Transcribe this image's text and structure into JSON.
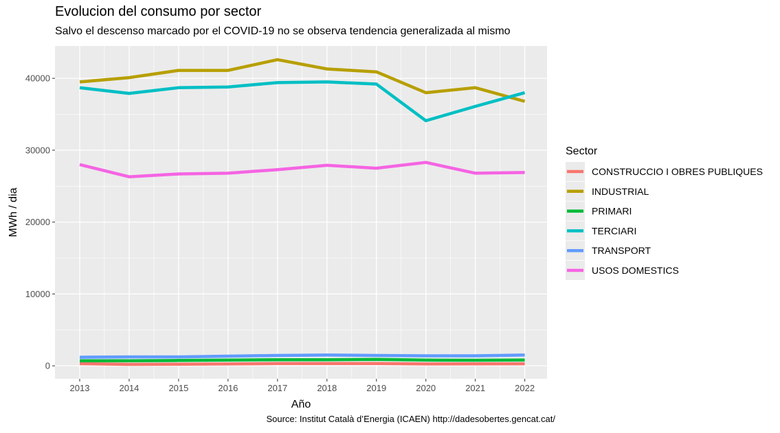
{
  "title": "Evolucion del consumo por sector",
  "subtitle": "Salvo el descenso marcado por el COVID-19 no se observa tendencia generalizada al mismo",
  "caption": "Source: Institut Català d’Energia (ICAEN) http://dadesobertes.gencat.cat/",
  "chart_data": {
    "type": "line",
    "xlabel": "Año",
    "ylabel": "MWh / dia",
    "x": [
      2013,
      2014,
      2015,
      2016,
      2017,
      2018,
      2019,
      2020,
      2021,
      2022
    ],
    "xlim": [
      2012.5,
      2022.45
    ],
    "ylim": [
      -1800,
      44500
    ],
    "yticks": [
      0,
      10000,
      20000,
      30000,
      40000
    ],
    "grid": true,
    "legend": {
      "title": "Sector",
      "position": "right"
    },
    "series": [
      {
        "name": "CONSTRUCCIO I OBRES PUBLIQUES",
        "color": "#F8766D",
        "values": [
          300,
          200,
          230,
          260,
          320,
          330,
          330,
          260,
          270,
          290
        ]
      },
      {
        "name": "INDUSTRIAL",
        "color": "#B79F00",
        "values": [
          39500,
          40100,
          41100,
          41100,
          42600,
          41300,
          40900,
          38000,
          38700,
          36800
        ]
      },
      {
        "name": "PRIMARI",
        "color": "#00BA38",
        "values": [
          700,
          700,
          750,
          800,
          850,
          850,
          900,
          800,
          780,
          820
        ]
      },
      {
        "name": "TERCIARI",
        "color": "#00BFC4",
        "values": [
          38700,
          37900,
          38700,
          38800,
          39400,
          39500,
          39200,
          34100,
          36100,
          38000
        ]
      },
      {
        "name": "TRANSPORT",
        "color": "#619CFF",
        "values": [
          1200,
          1250,
          1250,
          1350,
          1450,
          1500,
          1450,
          1400,
          1400,
          1500
        ]
      },
      {
        "name": "USOS DOMESTICS",
        "color": "#F564E3",
        "values": [
          28000,
          26300,
          26700,
          26800,
          27300,
          27900,
          27500,
          28300,
          26800,
          26900
        ]
      }
    ]
  }
}
